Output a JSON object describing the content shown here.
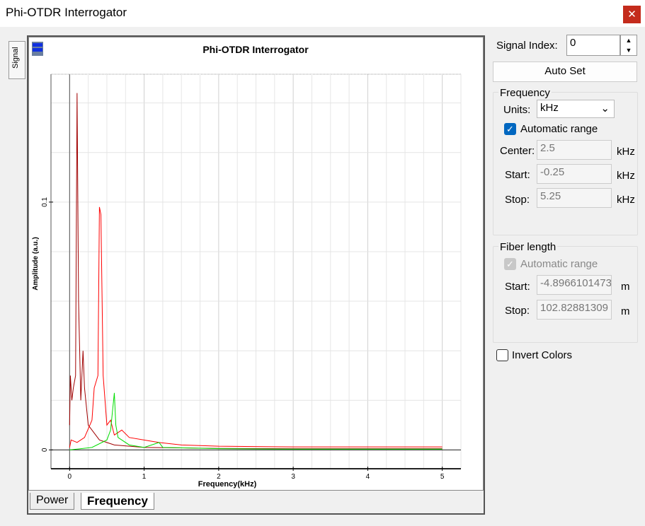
{
  "window": {
    "title": "Phi-OTDR Interrogator",
    "close_icon": "close-icon"
  },
  "side_tab": {
    "label": "Signal"
  },
  "chart_tabs": [
    {
      "label": "Power",
      "active": false
    },
    {
      "label": "Frequency",
      "active": true
    }
  ],
  "controls": {
    "signal_index_label": "Signal Index:",
    "signal_index_value": "0",
    "auto_set_label": "Auto Set",
    "frequency": {
      "title": "Frequency",
      "units_label": "Units:",
      "units_value": "kHz",
      "automatic_range_label": "Automatic range",
      "automatic_range_checked": true,
      "center_label": "Center:",
      "center_value": "2.5",
      "start_label": "Start:",
      "start_value": "-0.25",
      "stop_label": "Stop:",
      "stop_value": "5.25",
      "unit": "kHz"
    },
    "fiber": {
      "title": "Fiber length",
      "automatic_range_label": "Automatic range",
      "automatic_range_checked": true,
      "automatic_range_disabled": true,
      "start_label": "Start:",
      "start_value": "-4.8966101473",
      "stop_label": "Stop:",
      "stop_value": "102.82881309",
      "unit": "m"
    },
    "invert_colors_label": "Invert Colors",
    "invert_colors_checked": false,
    "accent": "#0067c0"
  },
  "chart_data": {
    "type": "line",
    "title": "Phi-OTDR Interrogator",
    "xlabel": "Frequency(kHz)",
    "ylabel": "Amplitude (a.u.)",
    "xlim": [
      -0.25,
      5.25
    ],
    "ylim": [
      -0.0076,
      0.1516
    ],
    "xticks": [
      0,
      1,
      2,
      3,
      4,
      5
    ],
    "yticks": [
      0,
      0.1
    ],
    "grid": true,
    "series": [
      {
        "color": "#a00000",
        "x": [
          0,
          0.01,
          0.03,
          0.05,
          0.08,
          0.1,
          0.12,
          0.15,
          0.18,
          0.2,
          0.25,
          0.3,
          0.35,
          0.4,
          0.5,
          0.6,
          1,
          2,
          3,
          4,
          5
        ],
        "y": [
          0.01,
          0.03,
          0.02,
          0.025,
          0.03,
          0.144,
          0.06,
          0.02,
          0.04,
          0.025,
          0.01,
          0.008,
          0.006,
          0.004,
          0.003,
          0.002,
          0.001,
          0.0006,
          0.0005,
          0.0005,
          0.0005
        ]
      },
      {
        "color": "#ff0000",
        "x": [
          0,
          0.02,
          0.1,
          0.2,
          0.3,
          0.33,
          0.38,
          0.4,
          0.42,
          0.45,
          0.5,
          0.55,
          0.6,
          0.7,
          0.8,
          1.0,
          1.2,
          1.5,
          2,
          3,
          4,
          5
        ],
        "y": [
          0.001,
          0.004,
          0.003,
          0.005,
          0.012,
          0.025,
          0.03,
          0.098,
          0.095,
          0.03,
          0.01,
          0.012,
          0.006,
          0.008,
          0.005,
          0.004,
          0.003,
          0.002,
          0.0015,
          0.0012,
          0.0012,
          0.0012
        ]
      },
      {
        "color": "#00dd00",
        "x": [
          0,
          0.3,
          0.5,
          0.55,
          0.6,
          0.62,
          0.65,
          0.8,
          1.0,
          1.2,
          1.25,
          2,
          3,
          4,
          5
        ],
        "y": [
          0,
          0.001,
          0.004,
          0.008,
          0.023,
          0.01,
          0.005,
          0.002,
          0.001,
          0.003,
          0.001,
          0.0005,
          0.0003,
          0.0003,
          0.0003
        ]
      }
    ]
  }
}
